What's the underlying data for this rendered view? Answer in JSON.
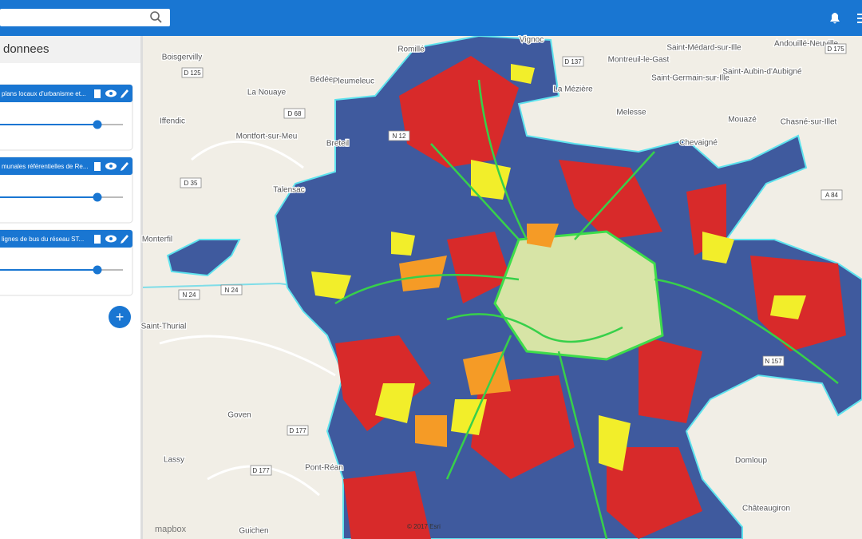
{
  "panel": {
    "title": "donnees",
    "layers": [
      {
        "name": "plans locaux d'urbanisme et..."
      },
      {
        "name": "munales référentielles de Re..."
      },
      {
        "name": "lignes de bus du réseau ST..."
      }
    ]
  },
  "map": {
    "places": [
      "Boisgervilly",
      "Bédée",
      "Pleumeleuc",
      "La Nouaye",
      "Iffendic",
      "Montfort-sur-Meu",
      "Breteil",
      "Talensac",
      "Monterfil",
      "Saint-Thurial",
      "Goven",
      "Lassy",
      "Pont-Réan",
      "Guichen",
      "Romillé",
      "Vignoc",
      "Montreuil-le-Gast",
      "Saint-Médard-sur-Ille",
      "Andouillé-Neuville",
      "La Mézière",
      "Saint-Germain-sur-Ille",
      "Saint-Aubin-d'Aubigné",
      "Melesse",
      "Mouazé",
      "Chasné-sur-Illet",
      "Chevaigné",
      "Domloup",
      "Châteaugiron"
    ],
    "roads": [
      "D 125",
      "D 68",
      "D 35",
      "N 24",
      "N 24",
      "D 177",
      "D 177",
      "D 137",
      "D 175",
      "A 84",
      "N 157",
      "N 12"
    ],
    "attribution": "mapbox",
    "copyright": "© 2017 Esri"
  }
}
